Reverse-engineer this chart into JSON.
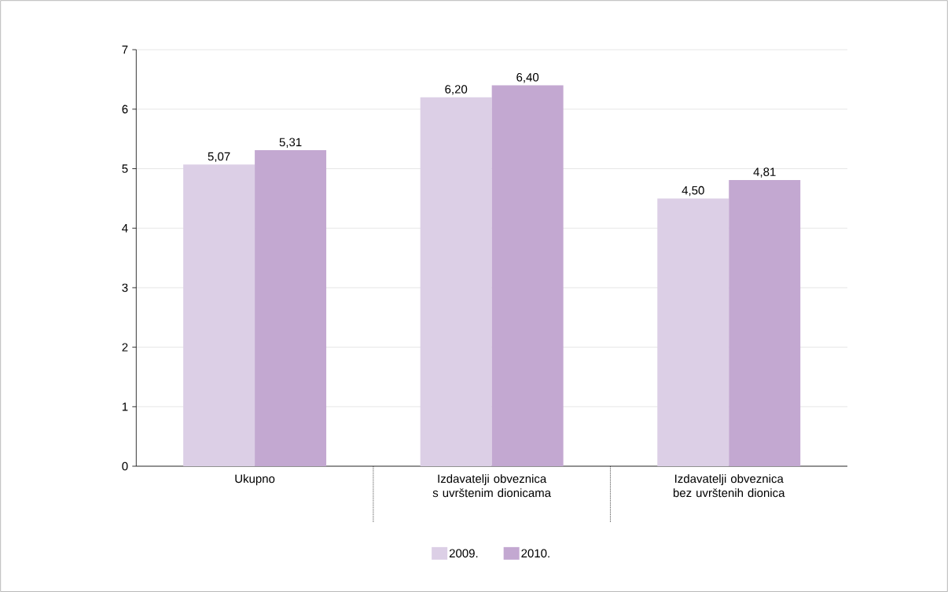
{
  "chart_data": {
    "type": "bar",
    "categories": [
      "Ukupno",
      "Izdavatelji obveznica s uvrštenim dionicama",
      "Izdavatelji obveznica bez uvrštenih dionica"
    ],
    "series": [
      {
        "name": "2009.",
        "color": "#dccfe6",
        "values": [
          5.07,
          6.2,
          4.5
        ],
        "value_labels": [
          "5,07",
          "6,20",
          "4,50"
        ]
      },
      {
        "name": "2010.",
        "color": "#c3a8d1",
        "values": [
          5.31,
          6.4,
          4.81
        ],
        "value_labels": [
          "5,31",
          "6,40",
          "4,81"
        ]
      }
    ],
    "ylim": [
      0,
      7
    ],
    "yticks": [
      0,
      1,
      2,
      3,
      4,
      5,
      6,
      7
    ],
    "grid": "y",
    "legend": "bottom"
  }
}
